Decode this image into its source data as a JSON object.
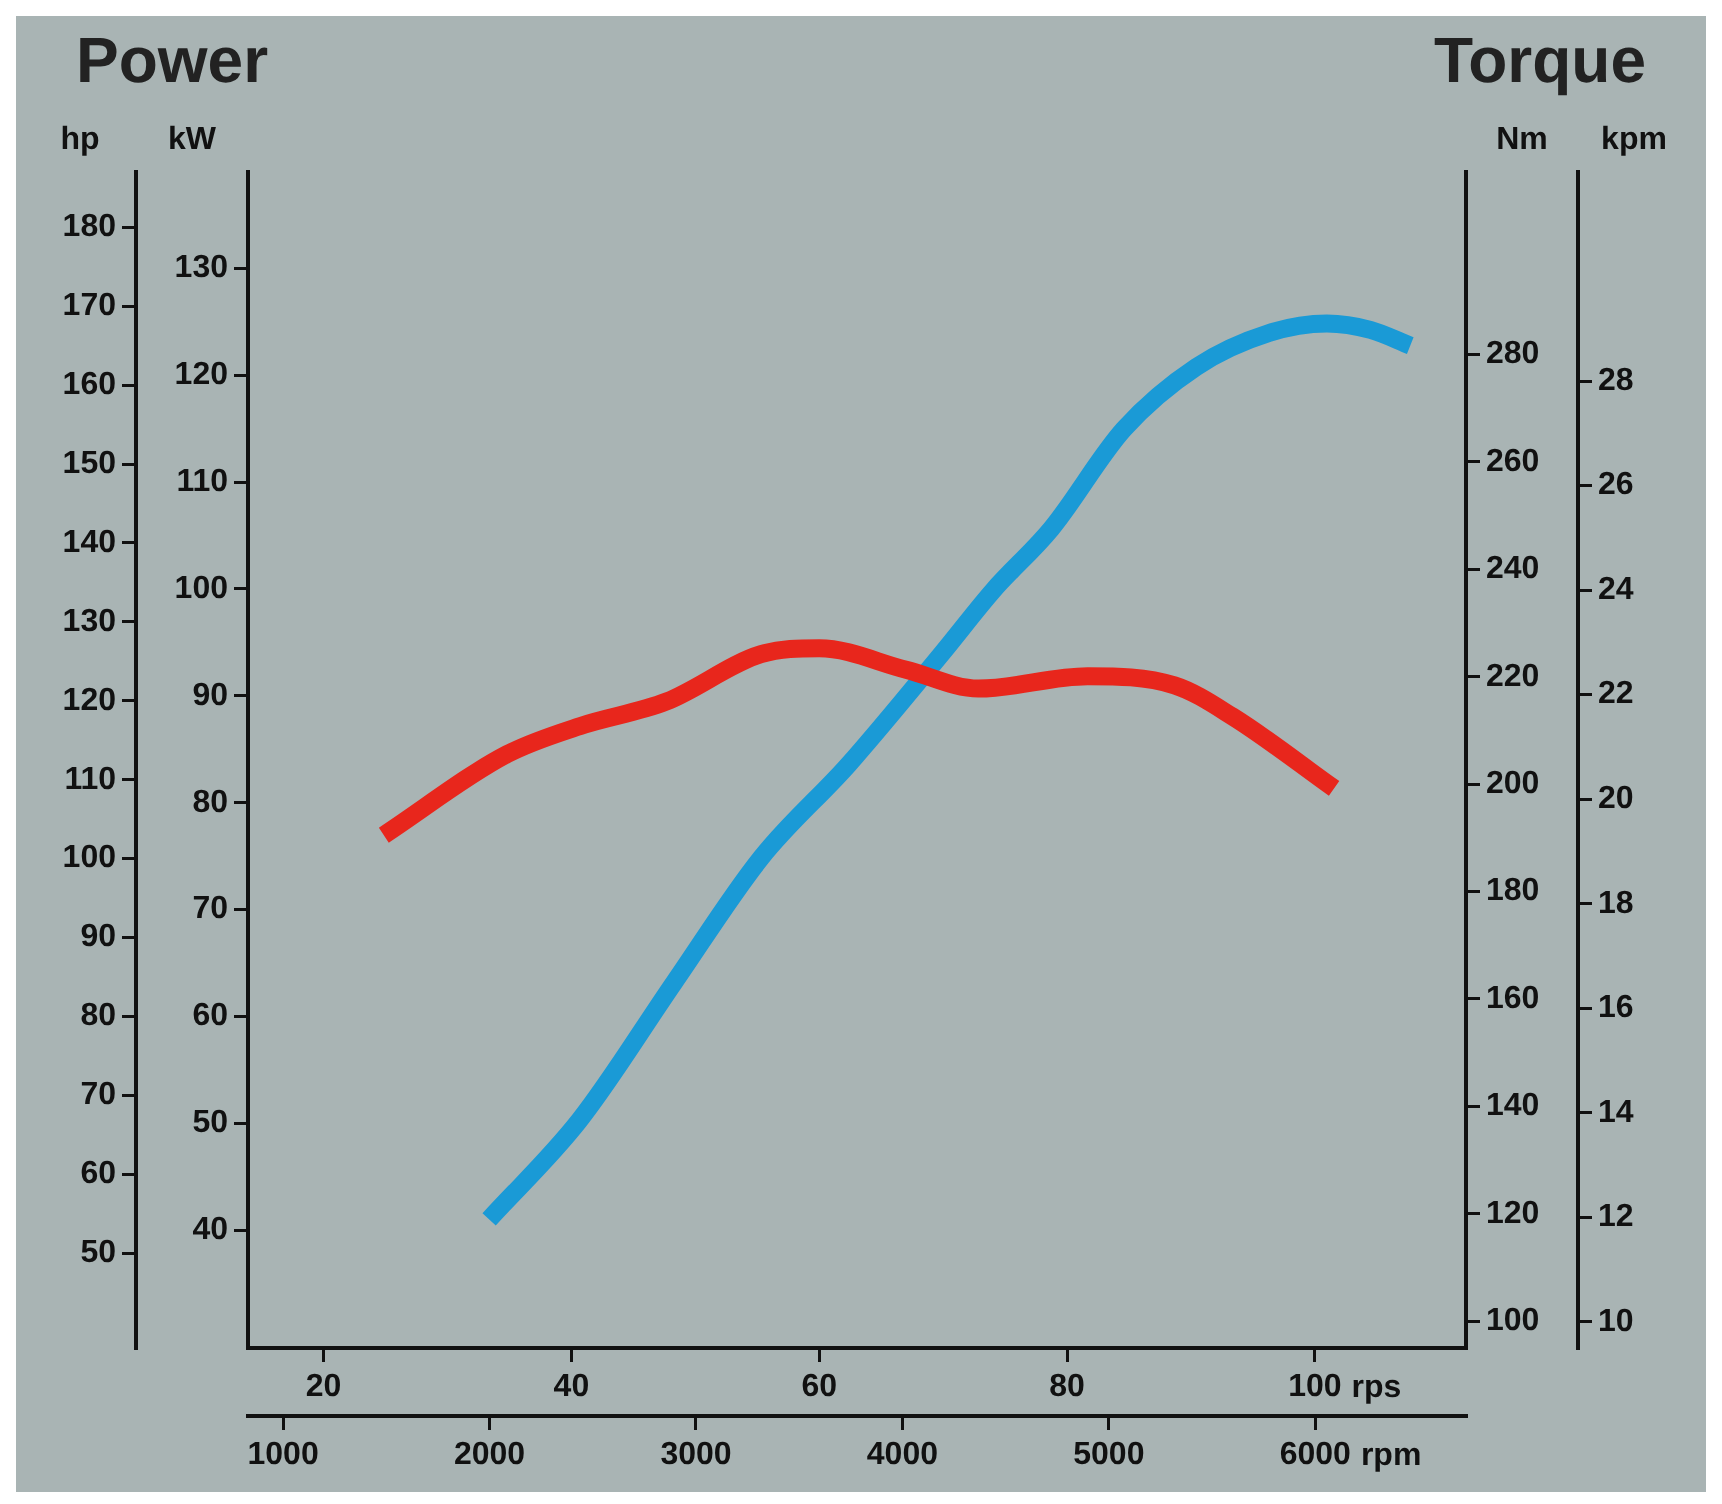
{
  "chart_data": [
    {
      "type": "line",
      "title": "Power",
      "xlabel": "rpm",
      "x2label": "rps",
      "ylabel": "hp",
      "y2label": "kW",
      "xlim": [
        830,
        6730
      ],
      "xticks": [
        1000,
        2000,
        3000,
        4000,
        5000,
        6000
      ],
      "x2lim": [
        13.9,
        112.2
      ],
      "x2ticks": [
        20,
        40,
        60,
        80,
        100
      ],
      "ylim": [
        38,
        187
      ],
      "yticks": [
        50,
        60,
        70,
        80,
        90,
        100,
        110,
        120,
        130,
        140,
        150,
        160,
        170,
        180
      ],
      "y2lim": [
        29,
        139
      ],
      "y2ticks": [
        40,
        50,
        60,
        70,
        80,
        90,
        100,
        110,
        120,
        130
      ],
      "grid": false,
      "legend": false,
      "marker": "none",
      "line_style": "solid",
      "series": [
        {
          "type": "line",
          "axis": "y",
          "color": "#1a9ad6",
          "x": [
            1998,
            2437,
            2894,
            3315,
            3738,
            4194,
            4440,
            4721,
            5072,
            5424,
            5776,
            6056,
            6267,
            6460
          ],
          "values": [
            54.3,
            66.9,
            84.3,
            100.1,
            111.9,
            126.1,
            134,
            141.8,
            154.4,
            162.3,
            166.6,
            167.8,
            167,
            165
          ]
        }
      ]
    },
    {
      "type": "line",
      "title": "Torque",
      "ylabel": "Nm",
      "y2label": "kpm",
      "tick_labels": "y",
      "xlim": [
        830,
        6730
      ],
      "ylim": [
        95,
        314
      ],
      "yticks": [
        100,
        120,
        140,
        160,
        180,
        200,
        220,
        240,
        260,
        280
      ],
      "y2lim": [
        9.5,
        32
      ],
      "y2ticks": [
        10,
        12,
        14,
        16,
        18,
        20,
        22,
        24,
        26,
        28
      ],
      "grid": false,
      "legend": false,
      "marker": "none",
      "line_style": "solid",
      "series": [
        {
          "type": "line",
          "axis": "y",
          "color": "#e8261c",
          "x": [
            1488,
            2086,
            2437,
            2858,
            3315,
            3597,
            4018,
            4369,
            4897,
            5318,
            5599,
            6091
          ],
          "values": [
            190.5,
            205.6,
            210.8,
            215.4,
            224.2,
            225.3,
            221.3,
            217.8,
            220.1,
            218.4,
            212.6,
            199.2
          ]
        }
      ]
    }
  ]
}
